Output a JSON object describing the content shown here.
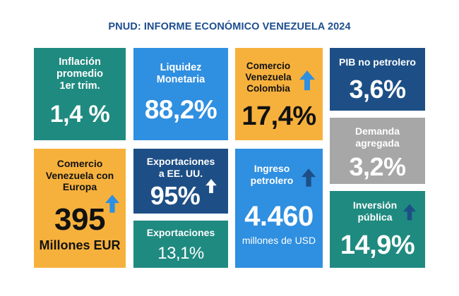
{
  "title": "PNUD: INFORME ECONÓMICO VENEZUELA 2024",
  "colors": {
    "teal": "#1f8a80",
    "blue": "#2f8fe0",
    "orange": "#f6b13d",
    "navy": "#1d4f86",
    "gray": "#a7a7a7",
    "title": "#1d4e8f"
  },
  "tiles": {
    "inflacion": {
      "label": "Inflación promedio 1er trim.",
      "value": "1,4 %"
    },
    "liquidez": {
      "label": "Liquidez Monetaria",
      "value": "88,2%"
    },
    "comercio_colombia": {
      "label": "Comercio Venezuela Colombia",
      "value": "17,4%",
      "arrow": "up-arrow-icon"
    },
    "pib": {
      "label": "PIB no petrolero",
      "value": "3,6%"
    },
    "comercio_europa": {
      "label": "Comercio Venezuela con Europa",
      "value": "395",
      "unit": "Millones EUR",
      "arrow": "up-arrow-icon"
    },
    "exportaciones_eeuu": {
      "label": "Exportaciones a EE. UU.",
      "value": "95%",
      "arrow": "up-arrow-icon"
    },
    "exportaciones": {
      "label": "Exportaciones",
      "value": "13,1%"
    },
    "ingreso_petrolero": {
      "label": "Ingreso petrolero",
      "value": "4.460",
      "unit": "millones de USD",
      "arrow": "up-arrow-icon"
    },
    "demanda": {
      "label": "Demanda agregada",
      "value": "3,2%"
    },
    "inversion": {
      "label": "Inversión pública",
      "value": "14,9%",
      "arrow": "up-arrow-icon"
    }
  }
}
